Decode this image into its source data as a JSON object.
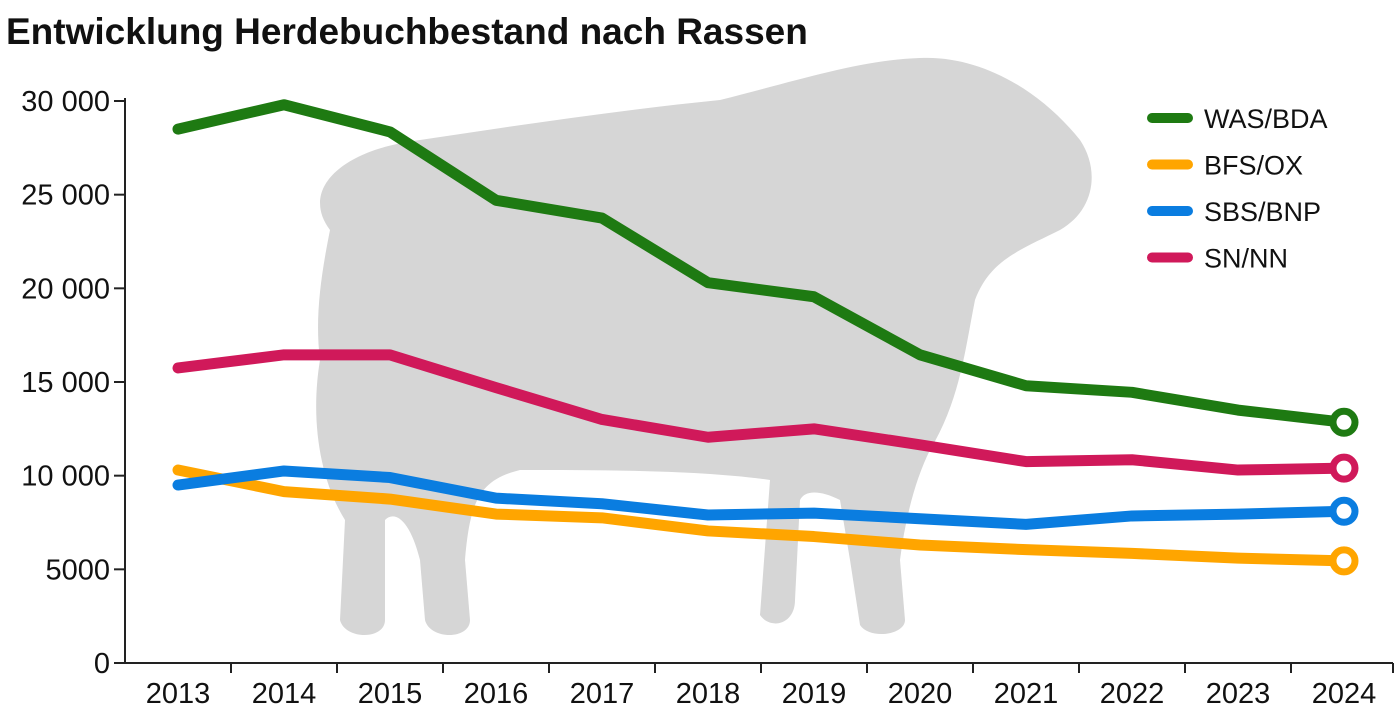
{
  "chart_data": {
    "type": "line",
    "title": "Entwicklung Herdebuchbestand nach Rassen",
    "xlabel": "",
    "ylabel": "",
    "categories": [
      "2013",
      "2014",
      "2015",
      "2016",
      "2017",
      "2018",
      "2019",
      "2020",
      "2021",
      "2022",
      "2023",
      "2024"
    ],
    "ylim": [
      0,
      30000
    ],
    "yticks": [
      0,
      5000,
      10000,
      15000,
      20000,
      25000,
      30000
    ],
    "ytick_labels": [
      "0",
      "5000",
      "10 000",
      "15 000",
      "20 000",
      "25 000",
      "30 000"
    ],
    "grid": false,
    "legend_position": "top-right",
    "series": [
      {
        "name": "WAS/BDA",
        "color": "#1e7a12",
        "values": [
          28500,
          29800,
          28350,
          24700,
          23750,
          20300,
          19550,
          16450,
          14800,
          14450,
          13500,
          12850
        ]
      },
      {
        "name": "BFS/OX",
        "color": "#ffa500",
        "values": [
          10300,
          9150,
          8750,
          7950,
          7750,
          7050,
          6750,
          6300,
          6050,
          5850,
          5600,
          5450
        ]
      },
      {
        "name": "SBS/BNP",
        "color": "#0a7de0",
        "values": [
          9500,
          10250,
          9900,
          8800,
          8500,
          7900,
          8000,
          7700,
          7400,
          7850,
          7950,
          8100
        ]
      },
      {
        "name": "SN/NN",
        "color": "#d0195a",
        "values": [
          15750,
          16450,
          16450,
          14700,
          13000,
          12050,
          12500,
          11650,
          10750,
          10850,
          10300,
          10400
        ]
      }
    ],
    "background_image": "sheep-silhouette"
  }
}
